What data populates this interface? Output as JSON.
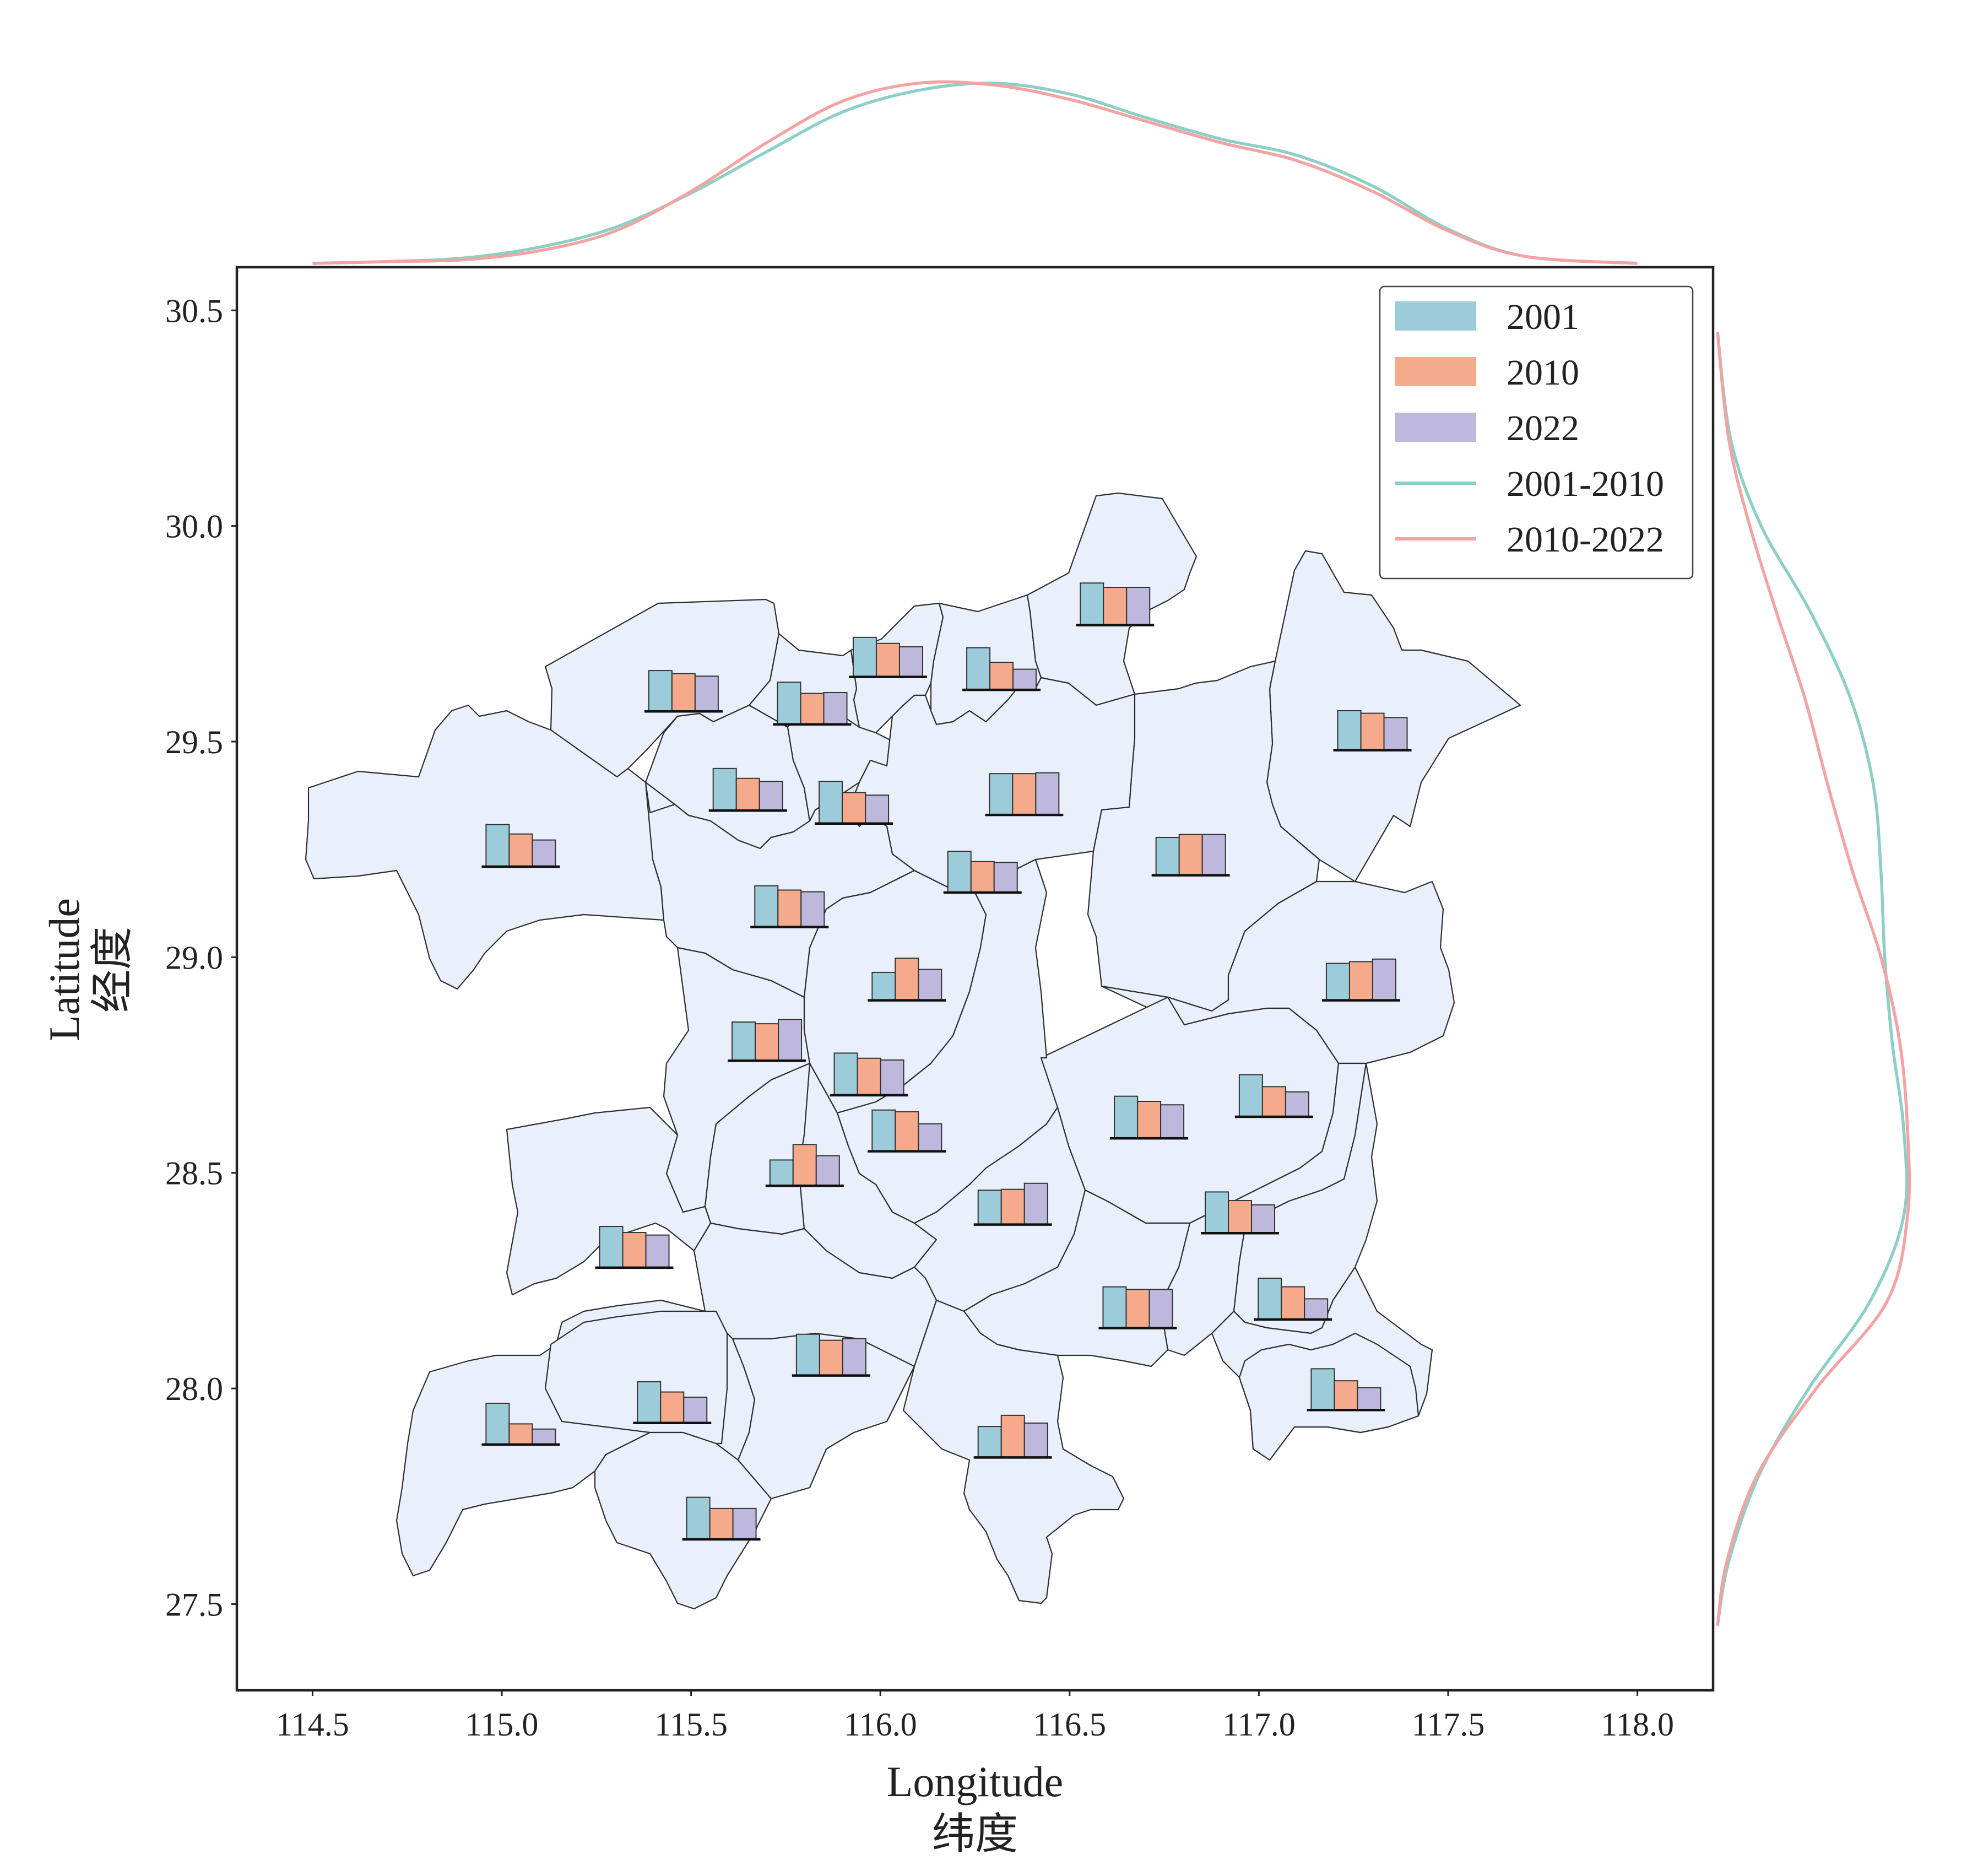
{
  "chart_data": {
    "type": "map_with_bar_glyphs",
    "xlabel": "Longitude",
    "xlabel_cn": "纬度",
    "ylabel": "Latitude",
    "ylabel_cn": "经度",
    "xlim": [
      114.3,
      118.2
    ],
    "ylim": [
      27.3,
      30.6
    ],
    "xticks": [
      114.5,
      115.0,
      115.5,
      116.0,
      116.5,
      117.0,
      117.5,
      118.0
    ],
    "xtick_labels": [
      "114.5",
      "115.0",
      "115.5",
      "116.0",
      "116.5",
      "117.0",
      "117.5",
      "118.0"
    ],
    "yticks": [
      27.5,
      28.0,
      28.5,
      29.0,
      29.5,
      30.0,
      30.5
    ],
    "ytick_labels": [
      "27.5",
      "28.0",
      "28.5",
      "29.0",
      "29.5",
      "30.0",
      "30.5"
    ],
    "bar_series": [
      {
        "name": "2001",
        "color": "#9ccbd9"
      },
      {
        "name": "2010",
        "color": "#f6aa8c"
      },
      {
        "name": "2022",
        "color": "#bdb8dc"
      }
    ],
    "line_series": [
      {
        "name": "2001-2010",
        "color": "#8ccfc6"
      },
      {
        "name": "2010-2022",
        "color": "#f4a3a3"
      }
    ],
    "legend_position": "top-right",
    "grid": false,
    "glyphs": [
      {
        "lon": 115.48,
        "lat": 29.57,
        "values": [
          0.95,
          0.88,
          0.82
        ]
      },
      {
        "lon": 115.82,
        "lat": 29.54,
        "values": [
          0.98,
          0.72,
          0.74
        ]
      },
      {
        "lon": 116.02,
        "lat": 29.65,
        "values": [
          0.92,
          0.78,
          0.7
        ]
      },
      {
        "lon": 116.32,
        "lat": 29.62,
        "values": [
          0.98,
          0.64,
          0.48
        ]
      },
      {
        "lon": 116.62,
        "lat": 29.77,
        "values": [
          0.98,
          0.88,
          0.88
        ]
      },
      {
        "lon": 117.3,
        "lat": 29.48,
        "values": [
          0.92,
          0.86,
          0.76
        ]
      },
      {
        "lon": 115.65,
        "lat": 29.34,
        "values": [
          0.98,
          0.75,
          0.68
        ]
      },
      {
        "lon": 115.93,
        "lat": 29.31,
        "values": [
          0.98,
          0.72,
          0.66
        ]
      },
      {
        "lon": 116.38,
        "lat": 29.33,
        "values": [
          0.96,
          0.96,
          0.98
        ]
      },
      {
        "lon": 115.05,
        "lat": 29.21,
        "values": [
          0.98,
          0.76,
          0.62
        ]
      },
      {
        "lon": 116.27,
        "lat": 29.15,
        "values": [
          0.96,
          0.72,
          0.7
        ]
      },
      {
        "lon": 116.82,
        "lat": 29.19,
        "values": [
          0.88,
          0.95,
          0.95
        ]
      },
      {
        "lon": 115.76,
        "lat": 29.07,
        "values": [
          0.96,
          0.86,
          0.82
        ]
      },
      {
        "lon": 116.07,
        "lat": 28.9,
        "values": [
          0.65,
          0.98,
          0.72
        ]
      },
      {
        "lon": 117.27,
        "lat": 28.9,
        "values": [
          0.86,
          0.9,
          0.96
        ]
      },
      {
        "lon": 115.7,
        "lat": 28.76,
        "values": [
          0.9,
          0.86,
          0.96
        ]
      },
      {
        "lon": 115.97,
        "lat": 28.68,
        "values": [
          0.98,
          0.86,
          0.82
        ]
      },
      {
        "lon": 117.04,
        "lat": 28.63,
        "values": [
          0.98,
          0.7,
          0.58
        ]
      },
      {
        "lon": 116.71,
        "lat": 28.58,
        "values": [
          0.98,
          0.86,
          0.78
        ]
      },
      {
        "lon": 116.07,
        "lat": 28.55,
        "values": [
          0.96,
          0.92,
          0.64
        ]
      },
      {
        "lon": 115.8,
        "lat": 28.47,
        "values": [
          0.6,
          0.96,
          0.7
        ]
      },
      {
        "lon": 116.35,
        "lat": 28.38,
        "values": [
          0.8,
          0.82,
          0.96
        ]
      },
      {
        "lon": 116.95,
        "lat": 28.36,
        "values": [
          0.96,
          0.76,
          0.66
        ]
      },
      {
        "lon": 115.35,
        "lat": 28.28,
        "values": [
          0.96,
          0.82,
          0.76
        ]
      },
      {
        "lon": 117.09,
        "lat": 28.16,
        "values": [
          0.96,
          0.76,
          0.48
        ]
      },
      {
        "lon": 116.68,
        "lat": 28.14,
        "values": [
          0.96,
          0.9,
          0.9
        ]
      },
      {
        "lon": 115.87,
        "lat": 28.03,
        "values": [
          0.96,
          0.82,
          0.86
        ]
      },
      {
        "lon": 117.23,
        "lat": 27.95,
        "values": [
          0.96,
          0.68,
          0.52
        ]
      },
      {
        "lon": 115.05,
        "lat": 27.87,
        "values": [
          0.96,
          0.48,
          0.36
        ]
      },
      {
        "lon": 115.45,
        "lat": 27.92,
        "values": [
          0.96,
          0.72,
          0.6
        ]
      },
      {
        "lon": 116.35,
        "lat": 27.84,
        "values": [
          0.72,
          0.98,
          0.8
        ]
      },
      {
        "lon": 115.58,
        "lat": 27.65,
        "values": [
          0.98,
          0.72,
          0.72
        ]
      }
    ],
    "kde_longitude": {
      "x": [
        114.5,
        114.7,
        114.9,
        115.1,
        115.3,
        115.5,
        115.7,
        115.9,
        116.1,
        116.3,
        116.5,
        116.7,
        116.9,
        117.1,
        117.3,
        117.5,
        117.7,
        118.0
      ],
      "2001-2010": [
        0.0,
        0.01,
        0.03,
        0.09,
        0.2,
        0.39,
        0.62,
        0.84,
        0.96,
        1.0,
        0.94,
        0.81,
        0.69,
        0.6,
        0.43,
        0.19,
        0.04,
        0.0
      ],
      "2010-2022": [
        0.0,
        0.01,
        0.02,
        0.07,
        0.18,
        0.4,
        0.67,
        0.9,
        1.0,
        0.99,
        0.91,
        0.79,
        0.67,
        0.57,
        0.4,
        0.18,
        0.04,
        0.0
      ]
    },
    "kde_latitude": {
      "y": [
        27.45,
        27.6,
        27.8,
        28.0,
        28.2,
        28.4,
        28.6,
        28.8,
        29.0,
        29.2,
        29.4,
        29.6,
        29.8,
        30.0,
        30.2,
        30.45
      ],
      "2001-2010": [
        0.0,
        0.06,
        0.22,
        0.48,
        0.8,
        0.98,
        0.98,
        0.92,
        0.88,
        0.86,
        0.82,
        0.7,
        0.49,
        0.23,
        0.07,
        0.0
      ],
      "2010-2022": [
        0.0,
        0.05,
        0.21,
        0.52,
        0.89,
        1.0,
        1.0,
        0.96,
        0.86,
        0.71,
        0.58,
        0.46,
        0.31,
        0.17,
        0.06,
        0.0
      ]
    }
  }
}
